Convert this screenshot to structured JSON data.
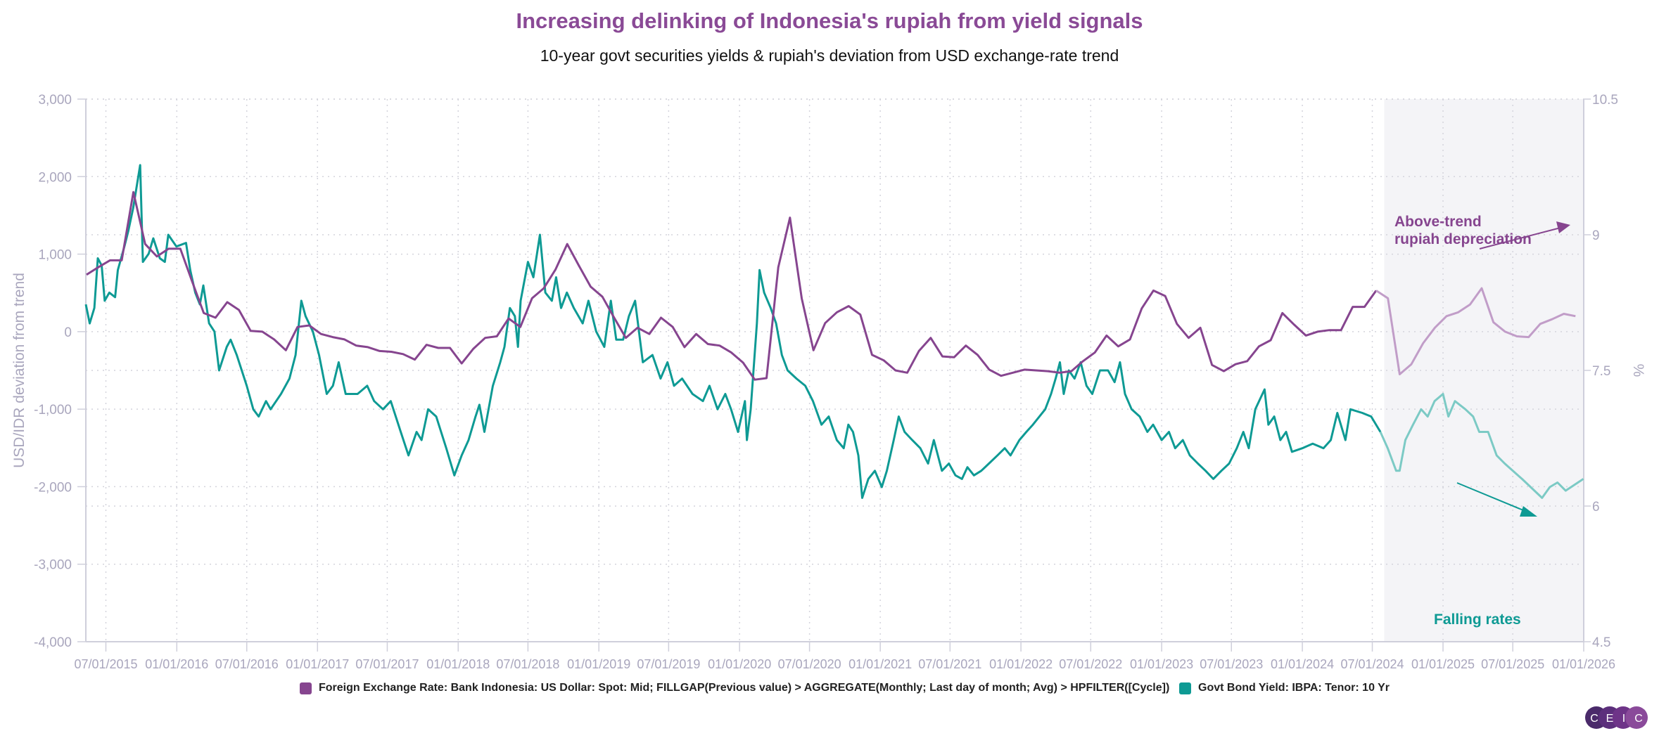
{
  "title": "Increasing delinking of Indonesia's rupiah from yield signals",
  "subtitle": "10-year govt securities yields & rupiah's deviation from USD exchange-rate trend",
  "logo_text": "CEIC",
  "colors": {
    "purple": "#86458f",
    "purple_light": "#c19dc8",
    "teal": "#0e9a94",
    "teal_light": "#7ccac5",
    "shade": "#f4f4f7",
    "axis": "#a9a6bd",
    "grid": "#d4d4dc"
  },
  "chart_data": {
    "type": "line",
    "title": "Increasing delinking of Indonesia's rupiah from yield signals",
    "xlim": [
      "2015-05-10",
      "2026-01-01"
    ],
    "x_ticks": [
      "07/01/2015",
      "01/01/2016",
      "07/01/2016",
      "01/01/2017",
      "07/01/2017",
      "01/01/2018",
      "07/01/2018",
      "01/01/2019",
      "07/01/2019",
      "01/01/2020",
      "07/01/2020",
      "01/01/2021",
      "07/01/2021",
      "01/01/2022",
      "07/01/2022",
      "01/01/2023",
      "07/01/2023",
      "01/01/2024",
      "07/01/2024",
      "01/01/2025",
      "07/01/2025",
      "01/01/2026"
    ],
    "y_left": {
      "label": "USD/IDR deviation from trend",
      "lim": [
        -4000,
        3000
      ],
      "ticks": [
        "3,000",
        "2,000",
        "1,000",
        "0",
        "-1,000",
        "-2,000",
        "-3,000",
        "-4,000"
      ]
    },
    "y_right": {
      "label": "%",
      "lim": [
        4.5,
        10.5
      ],
      "ticks": [
        "10.5",
        "9",
        "7.5",
        "6",
        "4.5"
      ]
    },
    "grid": true,
    "legend_placement": "bottom",
    "highlight_region": {
      "from": "2024-08-01",
      "to": "2026-01-01"
    },
    "annotations": [
      {
        "text_lines": [
          "Above-trend",
          "rupiah depreciation"
        ],
        "color": "#86458f"
      },
      {
        "text_lines": [
          "Falling rates"
        ],
        "color": "#0e9a94"
      }
    ],
    "series": [
      {
        "name": "Foreign Exchange Rate: Bank Indonesia: US Dollar: Spot: Mid; FILLGAP(Previous value) > AGGREGATE(Monthly; Last day of month; Avg) > HPFILTER([Cycle])",
        "axis": "left",
        "start_month": "2015-05",
        "frequency": "monthly",
        "values": [
          735,
          830,
          920,
          920,
          1800,
          1130,
          970,
          1070,
          1070,
          650,
          240,
          180,
          380,
          280,
          10,
          0,
          -100,
          -240,
          60,
          80,
          -30,
          -70,
          -100,
          -180,
          -200,
          -250,
          -260,
          -290,
          -360,
          -170,
          -210,
          -210,
          -410,
          -220,
          -80,
          -60,
          170,
          60,
          430,
          560,
          800,
          1130,
          850,
          580,
          450,
          180,
          -80,
          50,
          -30,
          180,
          60,
          -200,
          -30,
          -160,
          -180,
          -270,
          -400,
          -620,
          -600,
          830,
          1470,
          430,
          -240,
          110,
          250,
          330,
          220,
          -300,
          -370,
          -500,
          -530,
          -250,
          -80,
          -320,
          -330,
          -180,
          -300,
          -490,
          -570,
          -530,
          -490,
          -500,
          -510,
          -530,
          -510,
          -380,
          -270,
          -50,
          -190,
          -100,
          300,
          530,
          460,
          100,
          -80,
          50,
          -430,
          -510,
          -420,
          -380,
          -190,
          -110,
          240,
          90,
          -50,
          0,
          20,
          20,
          320,
          320,
          530,
          430,
          -550,
          -420,
          -150,
          50,
          200,
          250,
          350,
          560,
          120,
          0,
          -60,
          -70,
          100,
          160,
          230,
          200
        ]
      },
      {
        "name": "Govt Bond Yield: IBPA: Tenor: 10 Yr",
        "axis": "right",
        "points": [
          [
            "2015-05-10",
            8.23
          ],
          [
            "2015-05-20",
            8.02
          ],
          [
            "2015-06-01",
            8.19
          ],
          [
            "2015-06-10",
            8.74
          ],
          [
            "2015-06-20",
            8.66
          ],
          [
            "2015-06-28",
            8.27
          ],
          [
            "2015-07-10",
            8.36
          ],
          [
            "2015-07-25",
            8.31
          ],
          [
            "2015-08-01",
            8.61
          ],
          [
            "2015-08-18",
            8.87
          ],
          [
            "2015-08-28",
            9.04
          ],
          [
            "2015-09-10",
            9.3
          ],
          [
            "2015-09-28",
            9.77
          ],
          [
            "2015-10-05",
            8.7
          ],
          [
            "2015-10-20",
            8.79
          ],
          [
            "2015-11-01",
            8.96
          ],
          [
            "2015-11-18",
            8.74
          ],
          [
            "2015-12-01",
            8.7
          ],
          [
            "2015-12-10",
            9.0
          ],
          [
            "2015-12-31",
            8.87
          ],
          [
            "2016-01-25",
            8.91
          ],
          [
            "2016-02-05",
            8.61
          ],
          [
            "2016-02-18",
            8.36
          ],
          [
            "2016-03-01",
            8.23
          ],
          [
            "2016-03-10",
            8.44
          ],
          [
            "2016-03-25",
            8.02
          ],
          [
            "2016-04-08",
            7.93
          ],
          [
            "2016-04-20",
            7.5
          ],
          [
            "2016-05-10",
            7.76
          ],
          [
            "2016-05-20",
            7.84
          ],
          [
            "2016-06-05",
            7.67
          ],
          [
            "2016-07-01",
            7.33
          ],
          [
            "2016-07-18",
            7.07
          ],
          [
            "2016-08-01",
            6.99
          ],
          [
            "2016-08-20",
            7.16
          ],
          [
            "2016-09-01",
            7.07
          ],
          [
            "2016-09-28",
            7.24
          ],
          [
            "2016-10-20",
            7.41
          ],
          [
            "2016-11-05",
            7.67
          ],
          [
            "2016-11-20",
            8.27
          ],
          [
            "2016-12-01",
            8.1
          ],
          [
            "2016-12-20",
            7.93
          ],
          [
            "2017-01-05",
            7.67
          ],
          [
            "2017-01-25",
            7.24
          ],
          [
            "2017-02-10",
            7.33
          ],
          [
            "2017-02-25",
            7.59
          ],
          [
            "2017-03-15",
            7.24
          ],
          [
            "2017-04-15",
            7.24
          ],
          [
            "2017-05-10",
            7.33
          ],
          [
            "2017-05-28",
            7.16
          ],
          [
            "2017-06-20",
            7.07
          ],
          [
            "2017-07-10",
            7.16
          ],
          [
            "2017-08-05",
            6.82
          ],
          [
            "2017-08-25",
            6.56
          ],
          [
            "2017-09-15",
            6.82
          ],
          [
            "2017-09-28",
            6.73
          ],
          [
            "2017-10-15",
            7.07
          ],
          [
            "2017-11-05",
            6.99
          ],
          [
            "2017-12-01",
            6.64
          ],
          [
            "2017-12-22",
            6.34
          ],
          [
            "2018-01-10",
            6.56
          ],
          [
            "2018-01-28",
            6.73
          ],
          [
            "2018-02-15",
            6.99
          ],
          [
            "2018-02-25",
            7.12
          ],
          [
            "2018-03-10",
            6.82
          ],
          [
            "2018-04-01",
            7.33
          ],
          [
            "2018-04-20",
            7.59
          ],
          [
            "2018-05-01",
            7.76
          ],
          [
            "2018-05-15",
            8.19
          ],
          [
            "2018-05-28",
            8.1
          ],
          [
            "2018-06-05",
            7.76
          ],
          [
            "2018-06-12",
            8.27
          ],
          [
            "2018-07-01",
            8.7
          ],
          [
            "2018-07-15",
            8.53
          ],
          [
            "2018-08-01",
            9.0
          ],
          [
            "2018-08-15",
            8.36
          ],
          [
            "2018-09-01",
            8.27
          ],
          [
            "2018-09-12",
            8.53
          ],
          [
            "2018-09-25",
            8.19
          ],
          [
            "2018-10-10",
            8.36
          ],
          [
            "2018-10-28",
            8.19
          ],
          [
            "2018-11-20",
            8.02
          ],
          [
            "2018-12-05",
            8.27
          ],
          [
            "2018-12-25",
            7.93
          ],
          [
            "2019-01-15",
            7.76
          ],
          [
            "2019-02-01",
            8.27
          ],
          [
            "2019-02-15",
            7.84
          ],
          [
            "2019-03-05",
            7.84
          ],
          [
            "2019-03-20",
            8.1
          ],
          [
            "2019-04-05",
            8.27
          ],
          [
            "2019-04-25",
            7.59
          ],
          [
            "2019-05-20",
            7.67
          ],
          [
            "2019-06-10",
            7.41
          ],
          [
            "2019-06-28",
            7.59
          ],
          [
            "2019-07-15",
            7.33
          ],
          [
            "2019-08-05",
            7.41
          ],
          [
            "2019-09-01",
            7.24
          ],
          [
            "2019-09-28",
            7.16
          ],
          [
            "2019-10-15",
            7.33
          ],
          [
            "2019-11-05",
            7.07
          ],
          [
            "2019-11-25",
            7.24
          ],
          [
            "2019-12-10",
            7.07
          ],
          [
            "2019-12-28",
            6.82
          ],
          [
            "2020-01-15",
            7.16
          ],
          [
            "2020-01-20",
            6.73
          ],
          [
            "2020-01-30",
            7.07
          ],
          [
            "2020-02-15",
            8.02
          ],
          [
            "2020-02-22",
            8.61
          ],
          [
            "2020-03-05",
            8.36
          ],
          [
            "2020-03-22",
            8.19
          ],
          [
            "2020-04-05",
            8.02
          ],
          [
            "2020-04-20",
            7.67
          ],
          [
            "2020-05-05",
            7.5
          ],
          [
            "2020-05-28",
            7.41
          ],
          [
            "2020-06-20",
            7.33
          ],
          [
            "2020-07-10",
            7.16
          ],
          [
            "2020-08-01",
            6.9
          ],
          [
            "2020-08-20",
            6.99
          ],
          [
            "2020-09-10",
            6.73
          ],
          [
            "2020-09-28",
            6.64
          ],
          [
            "2020-10-10",
            6.9
          ],
          [
            "2020-10-22",
            6.82
          ],
          [
            "2020-11-05",
            6.56
          ],
          [
            "2020-11-15",
            6.09
          ],
          [
            "2020-12-01",
            6.3
          ],
          [
            "2020-12-18",
            6.39
          ],
          [
            "2021-01-05",
            6.21
          ],
          [
            "2021-01-18",
            6.39
          ],
          [
            "2021-02-05",
            6.73
          ],
          [
            "2021-02-18",
            6.99
          ],
          [
            "2021-03-05",
            6.82
          ],
          [
            "2021-03-25",
            6.73
          ],
          [
            "2021-04-15",
            6.64
          ],
          [
            "2021-05-05",
            6.47
          ],
          [
            "2021-05-20",
            6.73
          ],
          [
            "2021-06-10",
            6.39
          ],
          [
            "2021-06-28",
            6.47
          ],
          [
            "2021-07-15",
            6.34
          ],
          [
            "2021-08-01",
            6.3
          ],
          [
            "2021-08-15",
            6.43
          ],
          [
            "2021-09-01",
            6.34
          ],
          [
            "2021-09-20",
            6.39
          ],
          [
            "2021-10-10",
            6.47
          ],
          [
            "2021-11-01",
            6.56
          ],
          [
            "2021-11-20",
            6.64
          ],
          [
            "2021-12-05",
            6.56
          ],
          [
            "2021-12-28",
            6.73
          ],
          [
            "2022-01-15",
            6.82
          ],
          [
            "2022-02-01",
            6.9
          ],
          [
            "2022-02-18",
            6.99
          ],
          [
            "2022-03-05",
            7.07
          ],
          [
            "2022-03-20",
            7.24
          ],
          [
            "2022-04-01",
            7.41
          ],
          [
            "2022-04-12",
            7.59
          ],
          [
            "2022-04-22",
            7.24
          ],
          [
            "2022-05-05",
            7.5
          ],
          [
            "2022-05-20",
            7.41
          ],
          [
            "2022-06-05",
            7.59
          ],
          [
            "2022-06-20",
            7.33
          ],
          [
            "2022-07-05",
            7.24
          ],
          [
            "2022-07-25",
            7.5
          ],
          [
            "2022-08-15",
            7.5
          ],
          [
            "2022-09-01",
            7.37
          ],
          [
            "2022-09-15",
            7.59
          ],
          [
            "2022-09-28",
            7.24
          ],
          [
            "2022-10-15",
            7.07
          ],
          [
            "2022-11-05",
            6.99
          ],
          [
            "2022-11-25",
            6.82
          ],
          [
            "2022-12-10",
            6.9
          ],
          [
            "2023-01-01",
            6.73
          ],
          [
            "2023-01-20",
            6.82
          ],
          [
            "2023-02-05",
            6.64
          ],
          [
            "2023-02-25",
            6.73
          ],
          [
            "2023-03-15",
            6.56
          ],
          [
            "2023-04-05",
            6.47
          ],
          [
            "2023-04-25",
            6.39
          ],
          [
            "2023-05-15",
            6.3
          ],
          [
            "2023-06-05",
            6.39
          ],
          [
            "2023-06-25",
            6.47
          ],
          [
            "2023-07-15",
            6.64
          ],
          [
            "2023-08-01",
            6.82
          ],
          [
            "2023-08-15",
            6.64
          ],
          [
            "2023-09-01",
            7.07
          ],
          [
            "2023-09-25",
            7.29
          ],
          [
            "2023-10-05",
            6.9
          ],
          [
            "2023-10-20",
            6.99
          ],
          [
            "2023-11-05",
            6.73
          ],
          [
            "2023-11-20",
            6.82
          ],
          [
            "2023-12-05",
            6.6
          ],
          [
            "2024-01-01",
            6.64
          ],
          [
            "2024-01-28",
            6.69
          ],
          [
            "2024-02-25",
            6.64
          ],
          [
            "2024-03-15",
            6.73
          ],
          [
            "2024-04-01",
            7.03
          ],
          [
            "2024-04-22",
            6.73
          ],
          [
            "2024-05-05",
            7.07
          ],
          [
            "2024-06-05",
            7.03
          ],
          [
            "2024-06-28",
            6.99
          ],
          [
            "2024-07-22",
            6.82
          ],
          [
            "2024-08-10",
            6.64
          ],
          [
            "2024-09-01",
            6.39
          ],
          [
            "2024-09-10",
            6.39
          ],
          [
            "2024-09-25",
            6.73
          ],
          [
            "2024-10-15",
            6.9
          ],
          [
            "2024-11-05",
            7.07
          ],
          [
            "2024-11-22",
            6.99
          ],
          [
            "2024-12-10",
            7.16
          ],
          [
            "2025-01-01",
            7.24
          ],
          [
            "2025-01-15",
            6.99
          ],
          [
            "2025-02-01",
            7.16
          ],
          [
            "2025-02-28",
            7.07
          ],
          [
            "2025-03-20",
            6.99
          ],
          [
            "2025-04-05",
            6.82
          ],
          [
            "2025-04-28",
            6.82
          ],
          [
            "2025-05-20",
            6.56
          ],
          [
            "2025-06-10",
            6.47
          ],
          [
            "2025-07-01",
            6.39
          ],
          [
            "2025-07-25",
            6.3
          ],
          [
            "2025-09-15",
            6.09
          ],
          [
            "2025-10-05",
            6.21
          ],
          [
            "2025-10-25",
            6.26
          ],
          [
            "2025-11-15",
            6.17
          ],
          [
            "2025-12-31",
            6.3
          ]
        ]
      }
    ]
  }
}
